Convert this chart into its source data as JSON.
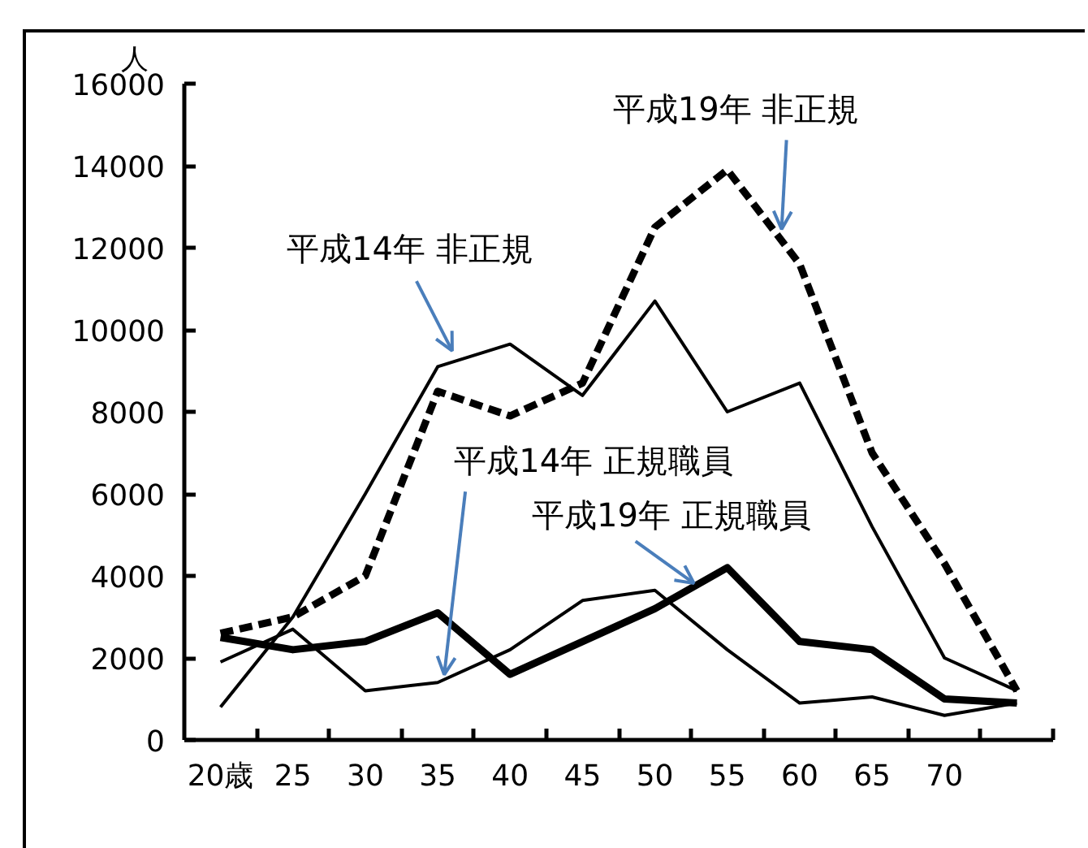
{
  "chart_data": {
    "type": "line",
    "ylabel": "人",
    "grid": false,
    "categories": [
      "20歳",
      "25",
      "30",
      "35",
      "40",
      "45",
      "50",
      "55",
      "60",
      "65",
      "70",
      null
    ],
    "ylim": [
      0,
      16000
    ],
    "yticks": [
      0,
      2000,
      4000,
      6000,
      8000,
      10000,
      12000,
      14000,
      16000
    ],
    "series": [
      {
        "name": "平成19年 非正規",
        "color": "#000000",
        "line_style": "dashed",
        "values": [
          2600,
          3000,
          4000,
          8500,
          7900,
          8700,
          12500,
          13900,
          11600,
          7000,
          4300,
          1200
        ]
      },
      {
        "name": "平成14年 非正規",
        "color": "#000000",
        "line_style": "solid",
        "values": [
          800,
          3000,
          6000,
          9100,
          9650,
          8400,
          10700,
          8000,
          8700,
          5200,
          2000,
          1200
        ]
      },
      {
        "name": "平成19年 正規職員",
        "color": "#000000",
        "line_style": "solid",
        "values": [
          2500,
          2200,
          2400,
          3100,
          1600,
          2400,
          3200,
          4200,
          2400,
          2200,
          1000,
          900
        ]
      },
      {
        "name": "平成14年 正規職員",
        "color": "#000000",
        "line_style": "solid",
        "values": [
          1900,
          2700,
          1200,
          1400,
          2200,
          3400,
          3650,
          2200,
          900,
          1050,
          600,
          900
        ]
      }
    ]
  }
}
